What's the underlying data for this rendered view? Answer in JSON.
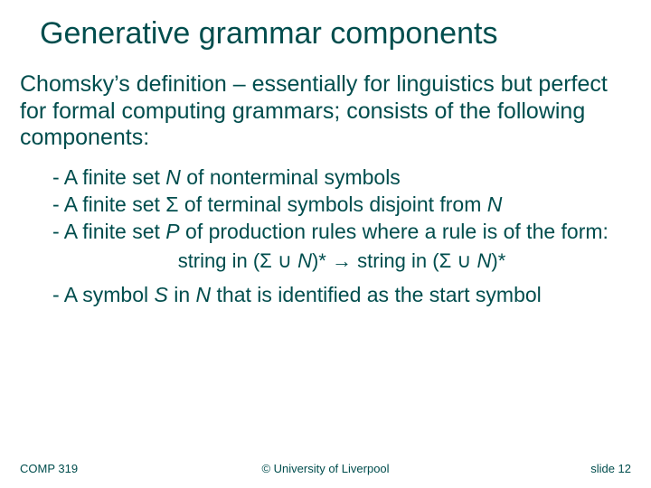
{
  "colors": {
    "title": "#004d4d",
    "body": "#004d4d",
    "footer": "#004d4d",
    "background": "#ffffff"
  },
  "typography": {
    "title_fontsize": 34,
    "body_fontsize": 25,
    "bullet_fontsize": 23,
    "sub_fontsize": 22,
    "footer_fontsize": 13,
    "font_family": "Arial"
  },
  "title": "Generative grammar components",
  "intro": "Chomsky’s definition – essentially for linguistics but perfect for formal computing grammars; consists of the following components:",
  "bullets": [
    {
      "before": "A finite set ",
      "ital": "N",
      "after": " of nonterminal symbols"
    },
    {
      "before": "A finite set Σ of terminal symbols disjoint from ",
      "ital": "N",
      "after": ""
    },
    {
      "before": "A finite set ",
      "ital": "P",
      "after": " of production rules where a rule is of the form:"
    }
  ],
  "subline": {
    "lhs_a": "string in (Σ ∪ ",
    "lhs_i": "N",
    "lhs_b": ")*",
    "arrow": "   →   ",
    "rhs_a": "string in (Σ ∪ ",
    "rhs_i": "N",
    "rhs_b": ")*"
  },
  "bullet4": {
    "before": "A symbol ",
    "ital1": "S",
    "mid": " in ",
    "ital2": "N",
    "after": " that is identified as the start symbol"
  },
  "dash": "- ",
  "footer": {
    "left": "COMP 319",
    "center": "© University of Liverpool",
    "right": "slide  12"
  }
}
